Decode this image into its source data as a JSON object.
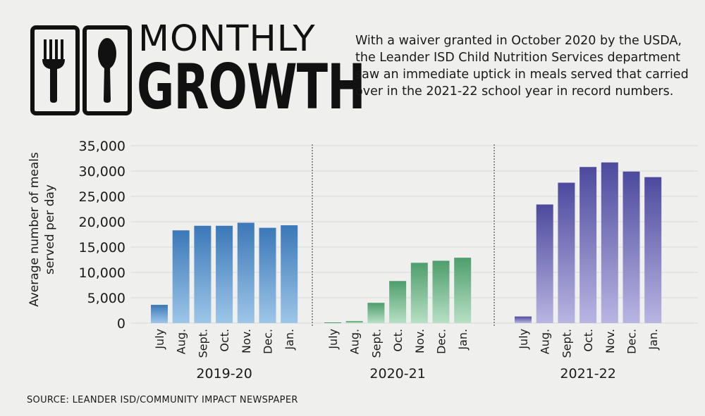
{
  "header": {
    "title_line1": "MONTHLY",
    "title_line2": "GROWTH",
    "icons": [
      "fork-icon",
      "spoon-icon"
    ],
    "intro": "With a waiver granted in October 2020 by the USDA, the Leander ISD Child Nutrition Services department saw an immediate uptick in meals served that carried over in the 2021-22 school year in record numbers."
  },
  "source": "SOURCE: LEANDER ISD/COMMUNITY IMPACT NEWSPAPER",
  "chart_data": {
    "type": "bar",
    "ylabel": "Average number of meals served per day",
    "ylim": [
      0,
      35000
    ],
    "yticks": [
      0,
      5000,
      10000,
      15000,
      20000,
      25000,
      30000,
      35000
    ],
    "ytick_labels": [
      "0",
      "5,000",
      "10,000",
      "15,000",
      "20,000",
      "25,000",
      "30,000",
      "35,000"
    ],
    "grid": true,
    "categories": [
      "July",
      "Aug.",
      "Sept.",
      "Oct.",
      "Nov.",
      "Dec.",
      "Jan."
    ],
    "panels": [
      {
        "name": "2019-20",
        "values": [
          3600,
          18300,
          19200,
          19200,
          19800,
          18800,
          19300
        ],
        "color_top": "#3b78b8",
        "color_bottom": "#9dc6e8"
      },
      {
        "name": "2020-21",
        "values": [
          0,
          400,
          4000,
          8300,
          11900,
          12300,
          12900
        ],
        "color_top": "#4e9e6c",
        "color_bottom": "#b7dfc4"
      },
      {
        "name": "2021-22",
        "values": [
          1300,
          23400,
          27700,
          30800,
          31700,
          29900,
          28800
        ],
        "color_top": "#4d4a9e",
        "color_bottom": "#b9b5e2"
      }
    ]
  }
}
